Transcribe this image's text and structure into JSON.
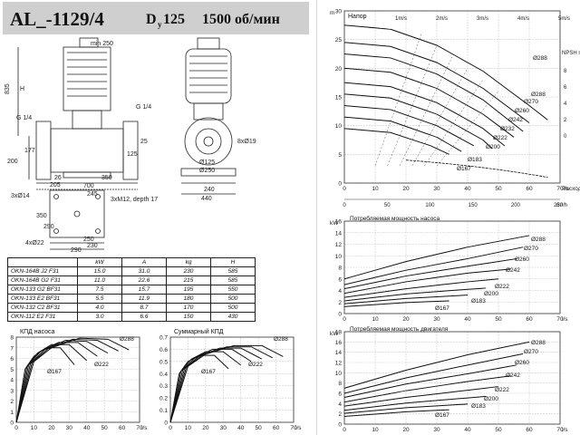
{
  "header": {
    "model": "AL_-1129/4",
    "du_label": "D",
    "du_sub": "y",
    "du_value": "125",
    "speed": "1500 об/мин"
  },
  "drawing": {
    "dims_front": [
      "min 250",
      "835",
      "H",
      "G 1/4",
      "G 1/4",
      "200",
      "177",
      "26",
      "350",
      "700",
      "125",
      "25",
      "3xM12, depth 17",
      "205",
      "245"
    ],
    "dims_side": [
      "8xØ19",
      "Ø125",
      "Ø250",
      "240",
      "440"
    ],
    "dims_base": [
      "3xØ14",
      "350",
      "290",
      "4xØ22",
      "250",
      "290",
      "230"
    ]
  },
  "spec_table": {
    "headers": [
      "",
      "kW",
      "A",
      "kg",
      "H"
    ],
    "rows": [
      [
        "OKN-164B J2 F31",
        "15.0",
        "31.0",
        "230",
        "585"
      ],
      [
        "OKN-164B G2 F31",
        "11.0",
        "22.6",
        "215",
        "585"
      ],
      [
        "OKN-133 G2 BF31",
        "7.5",
        "15.7",
        "195",
        "550"
      ],
      [
        "OKN-133 E2 BF31",
        "5.5",
        "11.9",
        "180",
        "500"
      ],
      [
        "OKN-132 C2 BF31",
        "4.0",
        "8.7",
        "170",
        "500"
      ],
      [
        "OKN-112 E2 F31",
        "3.0",
        "6.6",
        "150",
        "430"
      ]
    ]
  },
  "chart_data": [
    {
      "type": "line",
      "title": "КПД насоса",
      "xlabel": "l/s",
      "xticks": [
        0,
        10,
        20,
        30,
        40,
        50,
        60,
        70
      ],
      "yticks": [
        0,
        1,
        2,
        3,
        4,
        5,
        6,
        7,
        8
      ],
      "xlim": [
        0,
        70
      ],
      "ylim": [
        0,
        8
      ],
      "annotations": [
        "Ø288",
        "Ø222",
        "Ø167"
      ],
      "series": [
        {
          "x": [
            0,
            5,
            10,
            17,
            25,
            33
          ],
          "y": [
            0,
            5.0,
            6.2,
            7.0,
            7.0,
            5.4
          ]
        },
        {
          "x": [
            0,
            6,
            12,
            20,
            30,
            40
          ],
          "y": [
            0,
            5.2,
            6.5,
            7.3,
            7.3,
            5.8
          ]
        },
        {
          "x": [
            0,
            7,
            14,
            24,
            35,
            46
          ],
          "y": [
            0,
            5.4,
            6.7,
            7.5,
            7.5,
            6.2
          ]
        },
        {
          "x": [
            0,
            8,
            16,
            28,
            40,
            52
          ],
          "y": [
            0,
            5.5,
            6.8,
            7.7,
            7.6,
            6.5
          ]
        },
        {
          "x": [
            0,
            9,
            18,
            32,
            46,
            58
          ],
          "y": [
            0,
            5.6,
            6.9,
            7.8,
            7.7,
            6.7
          ]
        },
        {
          "x": [
            0,
            10,
            20,
            36,
            52,
            64
          ],
          "y": [
            0,
            5.7,
            7.0,
            7.9,
            7.8,
            6.8
          ]
        }
      ]
    },
    {
      "type": "line",
      "title": "Суммарный КПД",
      "xlabel": "l/s",
      "xticks": [
        0,
        10,
        20,
        30,
        40,
        50,
        60,
        70
      ],
      "yticks": [
        0,
        0.1,
        0.2,
        0.3,
        0.4,
        0.5,
        0.6,
        0.7
      ],
      "xlim": [
        0,
        70
      ],
      "ylim": [
        0,
        0.7
      ],
      "annotations": [
        "Ø288",
        "Ø222",
        "Ø167"
      ],
      "series": [
        {
          "x": [
            0,
            5,
            10,
            17,
            25,
            33
          ],
          "y": [
            0,
            0.4,
            0.5,
            0.55,
            0.55,
            0.44
          ]
        },
        {
          "x": [
            0,
            6,
            12,
            20,
            30,
            40
          ],
          "y": [
            0,
            0.42,
            0.52,
            0.58,
            0.58,
            0.47
          ]
        },
        {
          "x": [
            0,
            7,
            14,
            24,
            35,
            46
          ],
          "y": [
            0,
            0.43,
            0.53,
            0.6,
            0.6,
            0.5
          ]
        },
        {
          "x": [
            0,
            8,
            16,
            28,
            40,
            52
          ],
          "y": [
            0,
            0.44,
            0.54,
            0.61,
            0.61,
            0.52
          ]
        },
        {
          "x": [
            0,
            9,
            18,
            32,
            46,
            58
          ],
          "y": [
            0,
            0.45,
            0.55,
            0.62,
            0.62,
            0.53
          ]
        },
        {
          "x": [
            0,
            10,
            20,
            36,
            52,
            64
          ],
          "y": [
            0,
            0.46,
            0.56,
            0.63,
            0.63,
            0.54
          ]
        }
      ]
    },
    {
      "type": "line",
      "title": "Напор",
      "ylabel": "m",
      "xlabel": "Расход",
      "xticks": [
        0,
        10,
        20,
        30,
        40,
        50,
        60,
        70
      ],
      "xtick_unit": "l/s",
      "x2ticks": [
        0,
        50,
        100,
        150,
        200,
        250
      ],
      "x2tick_unit": "m³/h",
      "yticks": [
        0,
        5,
        10,
        15,
        20,
        25,
        30
      ],
      "xlim": [
        0,
        70
      ],
      "ylim": [
        0,
        30
      ],
      "velocity_labels": [
        "1m/s",
        "2m/s",
        "3m/s",
        "4m/s",
        "5m/s"
      ],
      "npsh_label": "NPSH m",
      "npsh_ticks": [
        0,
        2,
        4,
        6,
        8
      ],
      "annotations": [
        "Ø288",
        "Ø288",
        "Ø270",
        "Ø260",
        "Ø242",
        "Ø232",
        "Ø222",
        "Ø200",
        "Ø183",
        "Ø167"
      ],
      "series": [
        {
          "x": [
            0,
            15,
            30,
            45,
            60,
            66
          ],
          "y": [
            27.5,
            26.8,
            24.0,
            19.5,
            13.5,
            11.0
          ]
        },
        {
          "x": [
            0,
            15,
            30,
            45,
            60
          ],
          "y": [
            24.5,
            23.8,
            21.0,
            16.5,
            10.5
          ]
        },
        {
          "x": [
            0,
            15,
            30,
            45,
            58
          ],
          "y": [
            22.5,
            21.8,
            19.0,
            14.5,
            9.0
          ]
        },
        {
          "x": [
            0,
            15,
            30,
            45,
            55
          ],
          "y": [
            20.0,
            19.3,
            16.5,
            12.0,
            8.0
          ]
        },
        {
          "x": [
            0,
            15,
            30,
            45,
            52
          ],
          "y": [
            17.5,
            16.8,
            14.0,
            9.5,
            6.5
          ]
        },
        {
          "x": [
            0,
            15,
            30,
            45,
            48
          ],
          "y": [
            15.5,
            14.8,
            12.0,
            7.5,
            6.0
          ]
        },
        {
          "x": [
            0,
            15,
            30,
            42
          ],
          "y": [
            13.5,
            12.8,
            10.0,
            6.5
          ]
        },
        {
          "x": [
            0,
            15,
            30,
            38
          ],
          "y": [
            11.5,
            10.8,
            8.0,
            5.5
          ]
        },
        {
          "x": [
            0,
            15,
            28,
            34
          ],
          "y": [
            9.5,
            8.8,
            6.5,
            5.0
          ]
        }
      ]
    },
    {
      "type": "line",
      "title": "Потребляемая мощность насоса",
      "ylabel": "kW",
      "xlabel": "l/s",
      "xticks": [
        0,
        10,
        20,
        30,
        40,
        50,
        60,
        70
      ],
      "yticks": [
        0,
        2,
        4,
        6,
        8,
        10,
        12,
        14,
        16
      ],
      "xlim": [
        0,
        70
      ],
      "ylim": [
        0,
        16
      ],
      "annotations": [
        "Ø288",
        "Ø270",
        "Ø260",
        "Ø242",
        "Ø222",
        "Ø200",
        "Ø183",
        "Ø167"
      ],
      "series": [
        {
          "x": [
            0,
            20,
            40,
            60
          ],
          "y": [
            6.0,
            9.0,
            11.5,
            13.5
          ]
        },
        {
          "x": [
            0,
            20,
            40,
            58
          ],
          "y": [
            5.0,
            7.5,
            9.5,
            11.5
          ]
        },
        {
          "x": [
            0,
            20,
            40,
            56
          ],
          "y": [
            4.3,
            6.5,
            8.2,
            9.5
          ]
        },
        {
          "x": [
            0,
            20,
            40,
            54
          ],
          "y": [
            3.5,
            5.5,
            7.0,
            7.7
          ]
        },
        {
          "x": [
            0,
            20,
            40,
            50
          ],
          "y": [
            2.8,
            4.3,
            5.5,
            6.0
          ]
        },
        {
          "x": [
            0,
            20,
            40,
            46
          ],
          "y": [
            2.2,
            3.4,
            4.2,
            4.4
          ]
        },
        {
          "x": [
            0,
            20,
            40
          ],
          "y": [
            1.7,
            2.6,
            3.2
          ]
        },
        {
          "x": [
            0,
            20,
            34
          ],
          "y": [
            1.2,
            1.9,
            2.2
          ]
        }
      ]
    },
    {
      "type": "line",
      "title": "Потребляемая мощность двигателя",
      "ylabel": "kW",
      "xlabel": "l/s",
      "xticks": [
        0,
        10,
        20,
        30,
        40,
        50,
        60,
        70
      ],
      "yticks": [
        0,
        2,
        4,
        6,
        8,
        10,
        12,
        14,
        16,
        18
      ],
      "xlim": [
        0,
        70
      ],
      "ylim": [
        0,
        18
      ],
      "annotations": [
        "Ø288",
        "Ø270",
        "Ø260",
        "Ø242",
        "Ø222",
        "Ø200",
        "Ø183",
        "Ø167"
      ],
      "series": [
        {
          "x": [
            0,
            20,
            40,
            60
          ],
          "y": [
            7.0,
            10.5,
            13.5,
            16.0
          ]
        },
        {
          "x": [
            0,
            20,
            40,
            58
          ],
          "y": [
            6.0,
            9.0,
            11.5,
            13.7
          ]
        },
        {
          "x": [
            0,
            20,
            40,
            56
          ],
          "y": [
            5.2,
            7.8,
            9.8,
            11.5
          ]
        },
        {
          "x": [
            0,
            20,
            40,
            54
          ],
          "y": [
            4.3,
            6.5,
            8.3,
            9.4
          ]
        },
        {
          "x": [
            0,
            20,
            40,
            50
          ],
          "y": [
            3.5,
            5.2,
            6.6,
            7.3
          ]
        },
        {
          "x": [
            0,
            20,
            40,
            46
          ],
          "y": [
            2.7,
            4.1,
            5.1,
            5.4
          ]
        },
        {
          "x": [
            0,
            20,
            40
          ],
          "y": [
            2.1,
            3.2,
            3.9
          ]
        },
        {
          "x": [
            0,
            20,
            34
          ],
          "y": [
            1.5,
            2.4,
            2.8
          ]
        }
      ]
    }
  ]
}
